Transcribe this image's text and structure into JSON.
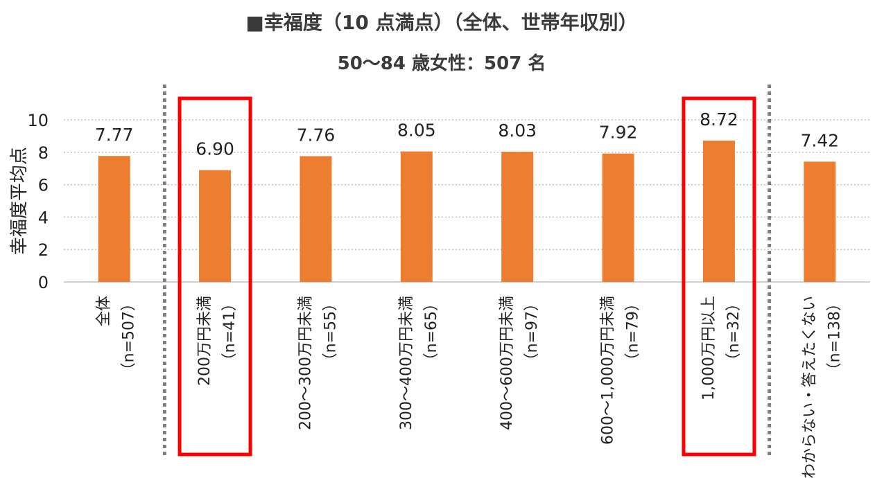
{
  "chart_data": {
    "type": "bar",
    "title": "■幸福度（10 点満点）（全体、世帯年収別）",
    "subtitle": "50～84 歳女性：507 名",
    "ylabel": "幸福度平均点",
    "xlabel": "",
    "ylim": [
      0,
      10
    ],
    "yticks": [
      0,
      2,
      4,
      6,
      8,
      10
    ],
    "grid": true,
    "categories": [
      [
        "全体",
        "（n=507）"
      ],
      [
        "200万円未満",
        "（n=41）"
      ],
      [
        "200～300万円未満",
        "（n=55）"
      ],
      [
        "300～400万円未満",
        "（n=65）"
      ],
      [
        "400～600万円未満",
        "（n=97）"
      ],
      [
        "600～1,000万円未満",
        "（n=79）"
      ],
      [
        "1,000万円以上",
        "（n=32）"
      ],
      [
        "わからない・答えたくない",
        "（n=138）"
      ]
    ],
    "values": [
      7.77,
      6.9,
      7.76,
      8.05,
      8.03,
      7.92,
      8.72,
      7.42
    ],
    "value_labels": [
      "7.77",
      "6.90",
      "7.76",
      "8.05",
      "8.03",
      "7.92",
      "8.72",
      "7.42"
    ],
    "highlighted_categories": [
      1,
      6
    ],
    "bar_color": "#ED7D31",
    "highlight_color": "#FF0000",
    "grid_color": "#BFBFBF",
    "separator_color": "#7F7F7F"
  }
}
